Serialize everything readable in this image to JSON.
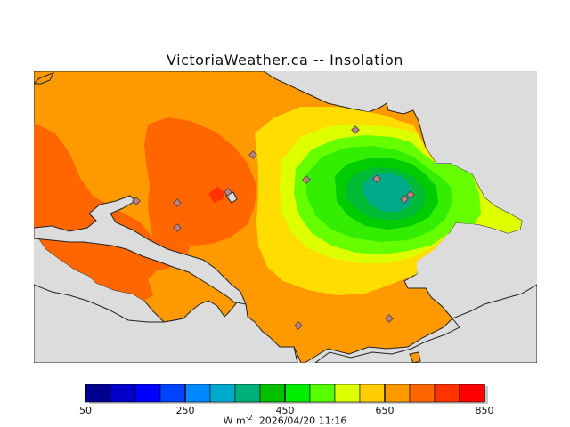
{
  "chart_data": {
    "type": "heatmap",
    "title": "VictoriaWeather.ca -- Insolation",
    "timestamp": "2026/04/20 11:16",
    "colorbar": {
      "min": 50,
      "max": 850,
      "step": 50,
      "tick_labels": [
        "50",
        "250",
        "450",
        "650",
        "850"
      ],
      "units_base": "W m",
      "units_exponent": "-2",
      "colors": [
        "#00008f",
        "#0000c8",
        "#0000ff",
        "#0044ff",
        "#0088ff",
        "#00aacc",
        "#00b07a",
        "#00c000",
        "#00ee00",
        "#55ff00",
        "#ddff00",
        "#ffcc00",
        "#ff9900",
        "#ff6600",
        "#ff3300",
        "#ff0000"
      ]
    },
    "levels_shown": [
      {
        "range": "300-350",
        "color": "#00aa88"
      },
      {
        "range": "350-400",
        "color": "#00bb33"
      },
      {
        "range": "400-450",
        "color": "#00cc00"
      },
      {
        "range": "450-500",
        "color": "#33ee00"
      },
      {
        "range": "500-550",
        "color": "#66ff00"
      },
      {
        "range": "550-600",
        "color": "#ddff00"
      },
      {
        "range": "600-650",
        "color": "#ffdd00"
      },
      {
        "range": "650-700",
        "color": "#ff9900"
      },
      {
        "range": "700-750",
        "color": "#ff6600"
      },
      {
        "range": "750-800",
        "color": "#ff3300"
      }
    ],
    "stations": 12
  }
}
